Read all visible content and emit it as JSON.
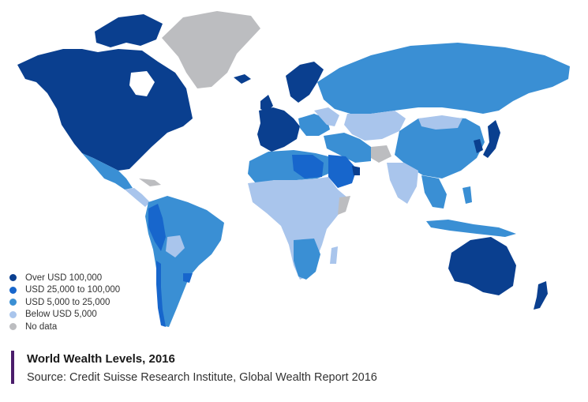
{
  "colors": {
    "over_100k": "#0a3f8f",
    "25k_to_100k": "#1766cc",
    "5k_to_25k": "#3a8fd4",
    "below_5k": "#a9c5ec",
    "no_data": "#bcbdc0",
    "caption_bar": "#4b1d6b"
  },
  "legend": {
    "items": [
      {
        "label": "Over USD 100,000",
        "color": "#0a3f8f"
      },
      {
        "label": "USD 25,000 to 100,000",
        "color": "#1766cc"
      },
      {
        "label": "USD 5,000 to 25,000",
        "color": "#3a8fd4"
      },
      {
        "label": "Below USD 5,000",
        "color": "#a9c5ec"
      },
      {
        "label": "No data",
        "color": "#bcbdc0"
      }
    ]
  },
  "caption": {
    "title": "World Wealth Levels, 2016",
    "source": "Source: Credit Suisse Research Institute, Global Wealth Report 2016"
  }
}
